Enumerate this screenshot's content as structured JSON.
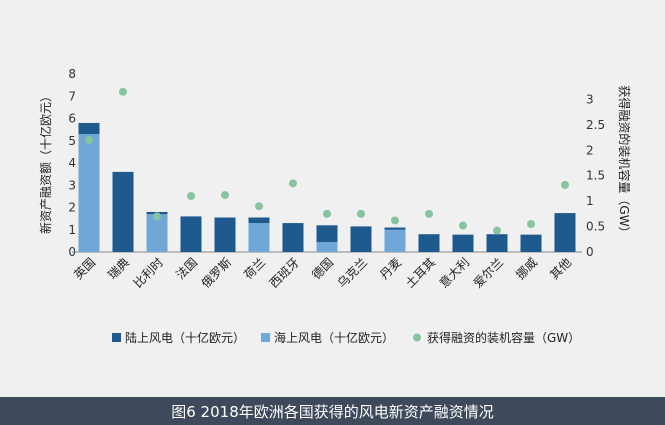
{
  "caption": "图6 2018年欧洲各国获得的风电新资产融资情况",
  "chart_data": {
    "type": "bar",
    "stacked": true,
    "categories": [
      "英国",
      "瑞典",
      "比利时",
      "法国",
      "俄罗斯",
      "荷兰",
      "西班牙",
      "德国",
      "乌克兰",
      "丹麦",
      "土耳其",
      "意大利",
      "爱尔兰",
      "挪威",
      "其他"
    ],
    "series": [
      {
        "name": "陆上风电（十亿欧元）",
        "kind": "bar",
        "color": "#1f5a8e",
        "values": [
          0.5,
          3.6,
          0.1,
          1.6,
          1.55,
          0.25,
          1.3,
          0.75,
          1.15,
          0.1,
          0.8,
          0.78,
          0.8,
          0.78,
          1.75
        ]
      },
      {
        "name": "海上风电（十亿欧元）",
        "kind": "bar",
        "color": "#6fa8d6",
        "values": [
          5.3,
          0,
          1.7,
          0,
          0,
          1.3,
          0,
          0.45,
          0,
          1.0,
          0,
          0,
          0,
          0,
          0
        ]
      },
      {
        "name": "获得融资的装机容量（GW）",
        "kind": "scatter",
        "axis": "right",
        "color": "#86c4a0",
        "values": [
          2.2,
          3.15,
          0.7,
          1.1,
          1.12,
          0.9,
          1.35,
          0.75,
          0.75,
          0.62,
          0.75,
          0.52,
          0.42,
          0.55,
          1.32
        ]
      }
    ],
    "ylabel": "新资产融资额（十亿欧元）",
    "y2label": "获得融资的装机容量（GW）",
    "ylim": [
      0,
      8
    ],
    "y2lim": [
      0,
      3.5
    ],
    "yticks": [
      "0",
      "1",
      "2",
      "3",
      "4",
      "5",
      "6",
      "7",
      "8"
    ],
    "y2ticks": [
      "0",
      "0.5",
      "1",
      "1.5",
      "2",
      "2.5",
      "3"
    ],
    "legend_position": "bottom",
    "grid": false
  }
}
